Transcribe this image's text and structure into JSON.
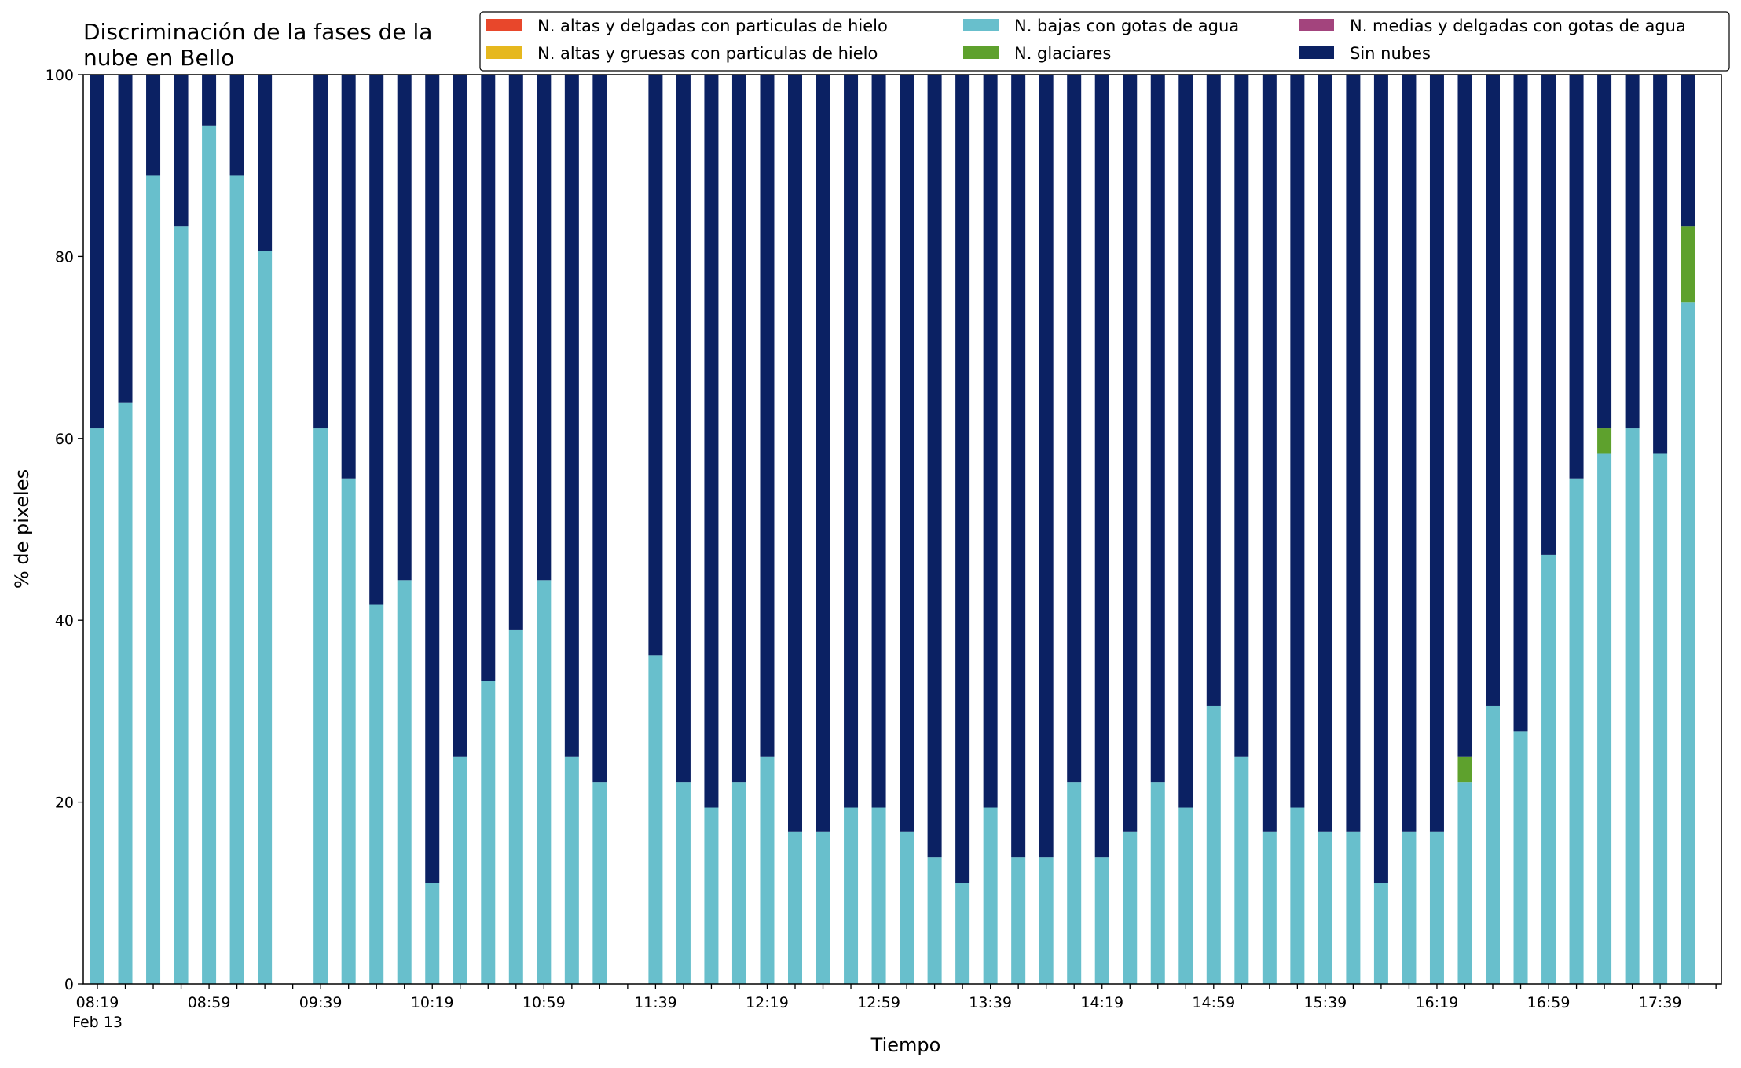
{
  "chart_data": {
    "type": "bar",
    "stacked": true,
    "title_lines": [
      "Discriminación de la fases de la",
      "nube en Bello"
    ],
    "xlabel": "Tiempo",
    "ylabel": "% de pixeles",
    "ylim": [
      0,
      100
    ],
    "yticks": [
      0,
      20,
      40,
      60,
      80,
      100
    ],
    "grid": false,
    "legend_position": "top-right",
    "x_tick_labels": [
      "08:19",
      "08:59",
      "09:39",
      "10:19",
      "10:59",
      "11:39",
      "12:19",
      "12:59",
      "13:39",
      "14:19",
      "14:59",
      "15:39",
      "16:19",
      "16:59",
      "17:39"
    ],
    "x_date_label": "Feb 13",
    "categories": [
      "08:19",
      "08:29",
      "08:39",
      "08:49",
      "08:59",
      "09:09",
      "09:19",
      "09:29",
      "09:39",
      "09:49",
      "09:59",
      "10:09",
      "10:19",
      "10:29",
      "10:39",
      "10:49",
      "10:59",
      "11:09",
      "11:19",
      "11:29",
      "11:39",
      "11:49",
      "11:59",
      "12:09",
      "12:19",
      "12:29",
      "12:39",
      "12:49",
      "12:59",
      "13:09",
      "13:19",
      "13:29",
      "13:39",
      "13:49",
      "13:59",
      "14:09",
      "14:19",
      "14:29",
      "14:39",
      "14:49",
      "14:59",
      "15:09",
      "15:19",
      "15:29",
      "15:39",
      "15:49",
      "15:59",
      "16:09",
      "16:19",
      "16:29",
      "16:39",
      "16:49",
      "16:59",
      "17:09",
      "17:19",
      "17:29",
      "17:39",
      "17:49",
      "17:59"
    ],
    "series": [
      {
        "name": "N. altas y delgadas con particulas de hielo",
        "color": "#e8472b",
        "values": [
          0,
          0,
          0,
          0,
          0,
          0,
          0,
          null,
          0,
          0,
          0,
          0,
          0,
          0,
          0,
          0,
          0,
          0,
          0,
          null,
          0,
          0,
          0,
          0,
          0,
          0,
          0,
          0,
          0,
          0,
          0,
          0,
          0,
          0,
          0,
          0,
          0,
          0,
          0,
          0,
          0,
          0,
          0,
          0,
          0,
          0,
          0,
          0,
          0,
          0,
          0,
          0,
          0,
          0,
          0,
          0,
          0,
          0,
          0
        ]
      },
      {
        "name": "N. altas y gruesas con particulas de hielo",
        "color": "#e6b81e",
        "values": [
          0,
          0,
          0,
          0,
          0,
          0,
          0,
          null,
          0,
          0,
          0,
          0,
          0,
          0,
          0,
          0,
          0,
          0,
          0,
          null,
          0,
          0,
          0,
          0,
          0,
          0,
          0,
          0,
          0,
          0,
          0,
          0,
          0,
          0,
          0,
          0,
          0,
          0,
          0,
          0,
          0,
          0,
          0,
          0,
          0,
          0,
          0,
          0,
          0,
          0,
          0,
          0,
          0,
          0,
          0,
          0,
          0,
          0,
          0
        ]
      },
      {
        "name": "N. bajas con gotas de agua",
        "color": "#68bfcc",
        "values": [
          61.1,
          63.9,
          88.9,
          83.3,
          94.4,
          88.9,
          80.6,
          null,
          61.1,
          55.6,
          41.7,
          44.4,
          11.1,
          25.0,
          33.3,
          38.9,
          44.4,
          25.0,
          22.2,
          null,
          36.1,
          22.2,
          19.4,
          22.2,
          25.0,
          16.7,
          16.7,
          19.4,
          19.4,
          16.7,
          13.9,
          11.1,
          19.4,
          13.9,
          13.9,
          22.2,
          13.9,
          16.7,
          22.2,
          19.4,
          30.6,
          25.0,
          16.7,
          19.4,
          16.7,
          16.7,
          11.1,
          16.7,
          16.7,
          22.2,
          30.6,
          27.8,
          47.2,
          55.6,
          58.3,
          61.1,
          58.3,
          75.0,
          0
        ]
      },
      {
        "name": "N. glaciares",
        "color": "#5ea12d",
        "values": [
          0,
          0,
          0,
          0,
          0,
          0,
          0,
          null,
          0,
          0,
          0,
          0,
          0,
          0,
          0,
          0,
          0,
          0,
          0,
          null,
          0,
          0,
          0,
          0,
          0,
          0,
          0,
          0,
          0,
          0,
          0,
          0,
          0,
          0,
          0,
          0,
          0,
          0,
          0,
          0,
          0,
          0,
          0,
          0,
          0,
          0,
          0,
          0,
          0,
          2.8,
          0,
          0,
          0,
          0,
          2.8,
          0,
          0,
          8.3,
          0
        ]
      },
      {
        "name": "N. medias y delgadas con gotas de agua",
        "color": "#a3447d",
        "values": [
          0,
          0,
          0,
          0,
          0,
          0,
          0,
          null,
          0,
          0,
          0,
          0,
          0,
          0,
          0,
          0,
          0,
          0,
          0,
          null,
          0,
          0,
          0,
          0,
          0,
          0,
          0,
          0,
          0,
          0,
          0,
          0,
          0,
          0,
          0,
          0,
          0,
          0,
          0,
          0,
          0,
          0,
          0,
          0,
          0,
          0,
          0,
          0,
          0,
          0,
          0,
          0,
          0,
          0,
          0,
          0,
          0,
          0,
          0
        ]
      },
      {
        "name": "Sin nubes",
        "color": "#0b2163",
        "values": [
          38.9,
          36.1,
          11.1,
          16.7,
          5.6,
          11.1,
          19.4,
          null,
          38.9,
          44.4,
          58.3,
          55.6,
          88.9,
          75.0,
          66.7,
          61.1,
          55.6,
          75.0,
          77.8,
          null,
          63.9,
          77.8,
          80.6,
          77.8,
          75.0,
          83.3,
          83.3,
          80.6,
          80.6,
          83.3,
          86.1,
          88.9,
          80.6,
          86.1,
          86.1,
          77.8,
          86.1,
          83.3,
          77.8,
          80.6,
          69.4,
          75.0,
          83.3,
          80.6,
          83.3,
          83.3,
          88.9,
          83.3,
          83.3,
          75.0,
          69.4,
          72.2,
          52.8,
          44.4,
          38.9,
          38.9,
          41.7,
          16.7,
          0
        ]
      }
    ]
  }
}
